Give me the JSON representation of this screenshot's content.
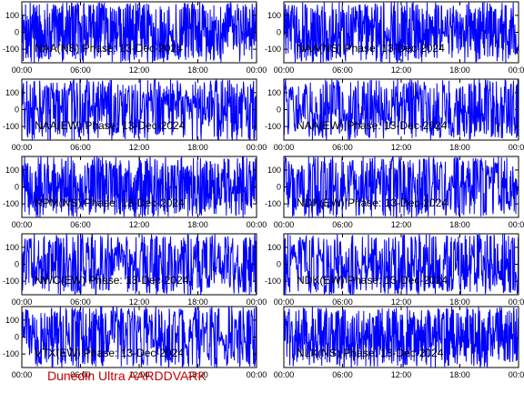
{
  "footer_text": "Dunedin Ultra AARDDVARK",
  "colors": {
    "trace": "#0000ff",
    "frame": "#000000",
    "background": "#ffffff",
    "footer": "#cc0000"
  },
  "chart_data": [
    {
      "type": "line",
      "title": "NAA(NS) Phase: 13-Dec-2024",
      "x_ticks": [
        "00:00",
        "06:00",
        "12:00",
        "18:00",
        "00:00"
      ],
      "y_ticks": [
        100,
        0,
        -100
      ],
      "ylim": [
        -180,
        180
      ],
      "density": 0.95
    },
    {
      "type": "line",
      "title": "NAA(NS) Phase: 13-Dec-2024",
      "x_ticks": [
        "00:00",
        "06:00",
        "12:00",
        "18:00",
        "00:00"
      ],
      "y_ticks": [
        100,
        0,
        -100
      ],
      "ylim": [
        -180,
        180
      ],
      "density": 0.95
    },
    {
      "type": "line",
      "title": "NAA(EW) Phase: 13-Dec-2024",
      "x_ticks": [
        "00:00",
        "06:00",
        "12:00",
        "18:00",
        "00:00"
      ],
      "y_ticks": [
        100,
        0,
        -100
      ],
      "ylim": [
        -180,
        180
      ],
      "density": 0.6
    },
    {
      "type": "line",
      "title": "NAA(EW) Phase: 13-Dec-2024",
      "x_ticks": [
        "00:00",
        "06:00",
        "12:00",
        "18:00",
        "00:00"
      ],
      "y_ticks": [
        100,
        0,
        -100
      ],
      "ylim": [
        -180,
        180
      ],
      "density": 0.6
    },
    {
      "type": "line",
      "title": "NPM(NS) Phase: 13-Dec-2024",
      "x_ticks": [
        "00:00",
        "06:00",
        "12:00",
        "18:00",
        "00:00"
      ],
      "y_ticks": [
        100,
        0,
        -100
      ],
      "ylim": [
        -180,
        180
      ],
      "density": 0.95
    },
    {
      "type": "line",
      "title": "NDK(EW) Phase: 13-Dec-2024",
      "x_ticks": [
        "00:00",
        "06:00",
        "12:00",
        "18:00",
        "00:00"
      ],
      "y_ticks": [
        100,
        0,
        -100
      ],
      "ylim": [
        -180,
        180
      ],
      "density": 0.55
    },
    {
      "type": "line",
      "title": "NWC(EW) Phase: 13-Dec-2024",
      "x_ticks": [
        "00:00",
        "06:00",
        "12:00",
        "18:00",
        "00:00"
      ],
      "y_ticks": [
        100,
        0,
        -100
      ],
      "ylim": [
        -180,
        180
      ],
      "density": 0.55
    },
    {
      "type": "line",
      "title": "NDK(EW) Phase: 13-Dec-2024",
      "x_ticks": [
        "00:00",
        "06:00",
        "12:00",
        "18:00",
        "00:00"
      ],
      "y_ticks": [
        100,
        0,
        -100
      ],
      "ylim": [
        -180,
        180
      ],
      "density": 0.55
    },
    {
      "type": "line",
      "title": "VTX(EW) Phase: 13-Dec-2024",
      "x_ticks": [
        "00:00",
        "06:00",
        "12:00",
        "18:00",
        "00:00"
      ],
      "y_ticks": [
        100,
        0,
        -100
      ],
      "ylim": [
        -180,
        180
      ],
      "density": 0.5
    },
    {
      "type": "line",
      "title": "NLK(NS) Phase: 13-Dec-2024",
      "x_ticks": [
        "00:00",
        "06:00",
        "12:00",
        "18:00",
        "00:00"
      ],
      "y_ticks": [],
      "ylim": [
        -180,
        180
      ],
      "density": 0.95
    }
  ]
}
